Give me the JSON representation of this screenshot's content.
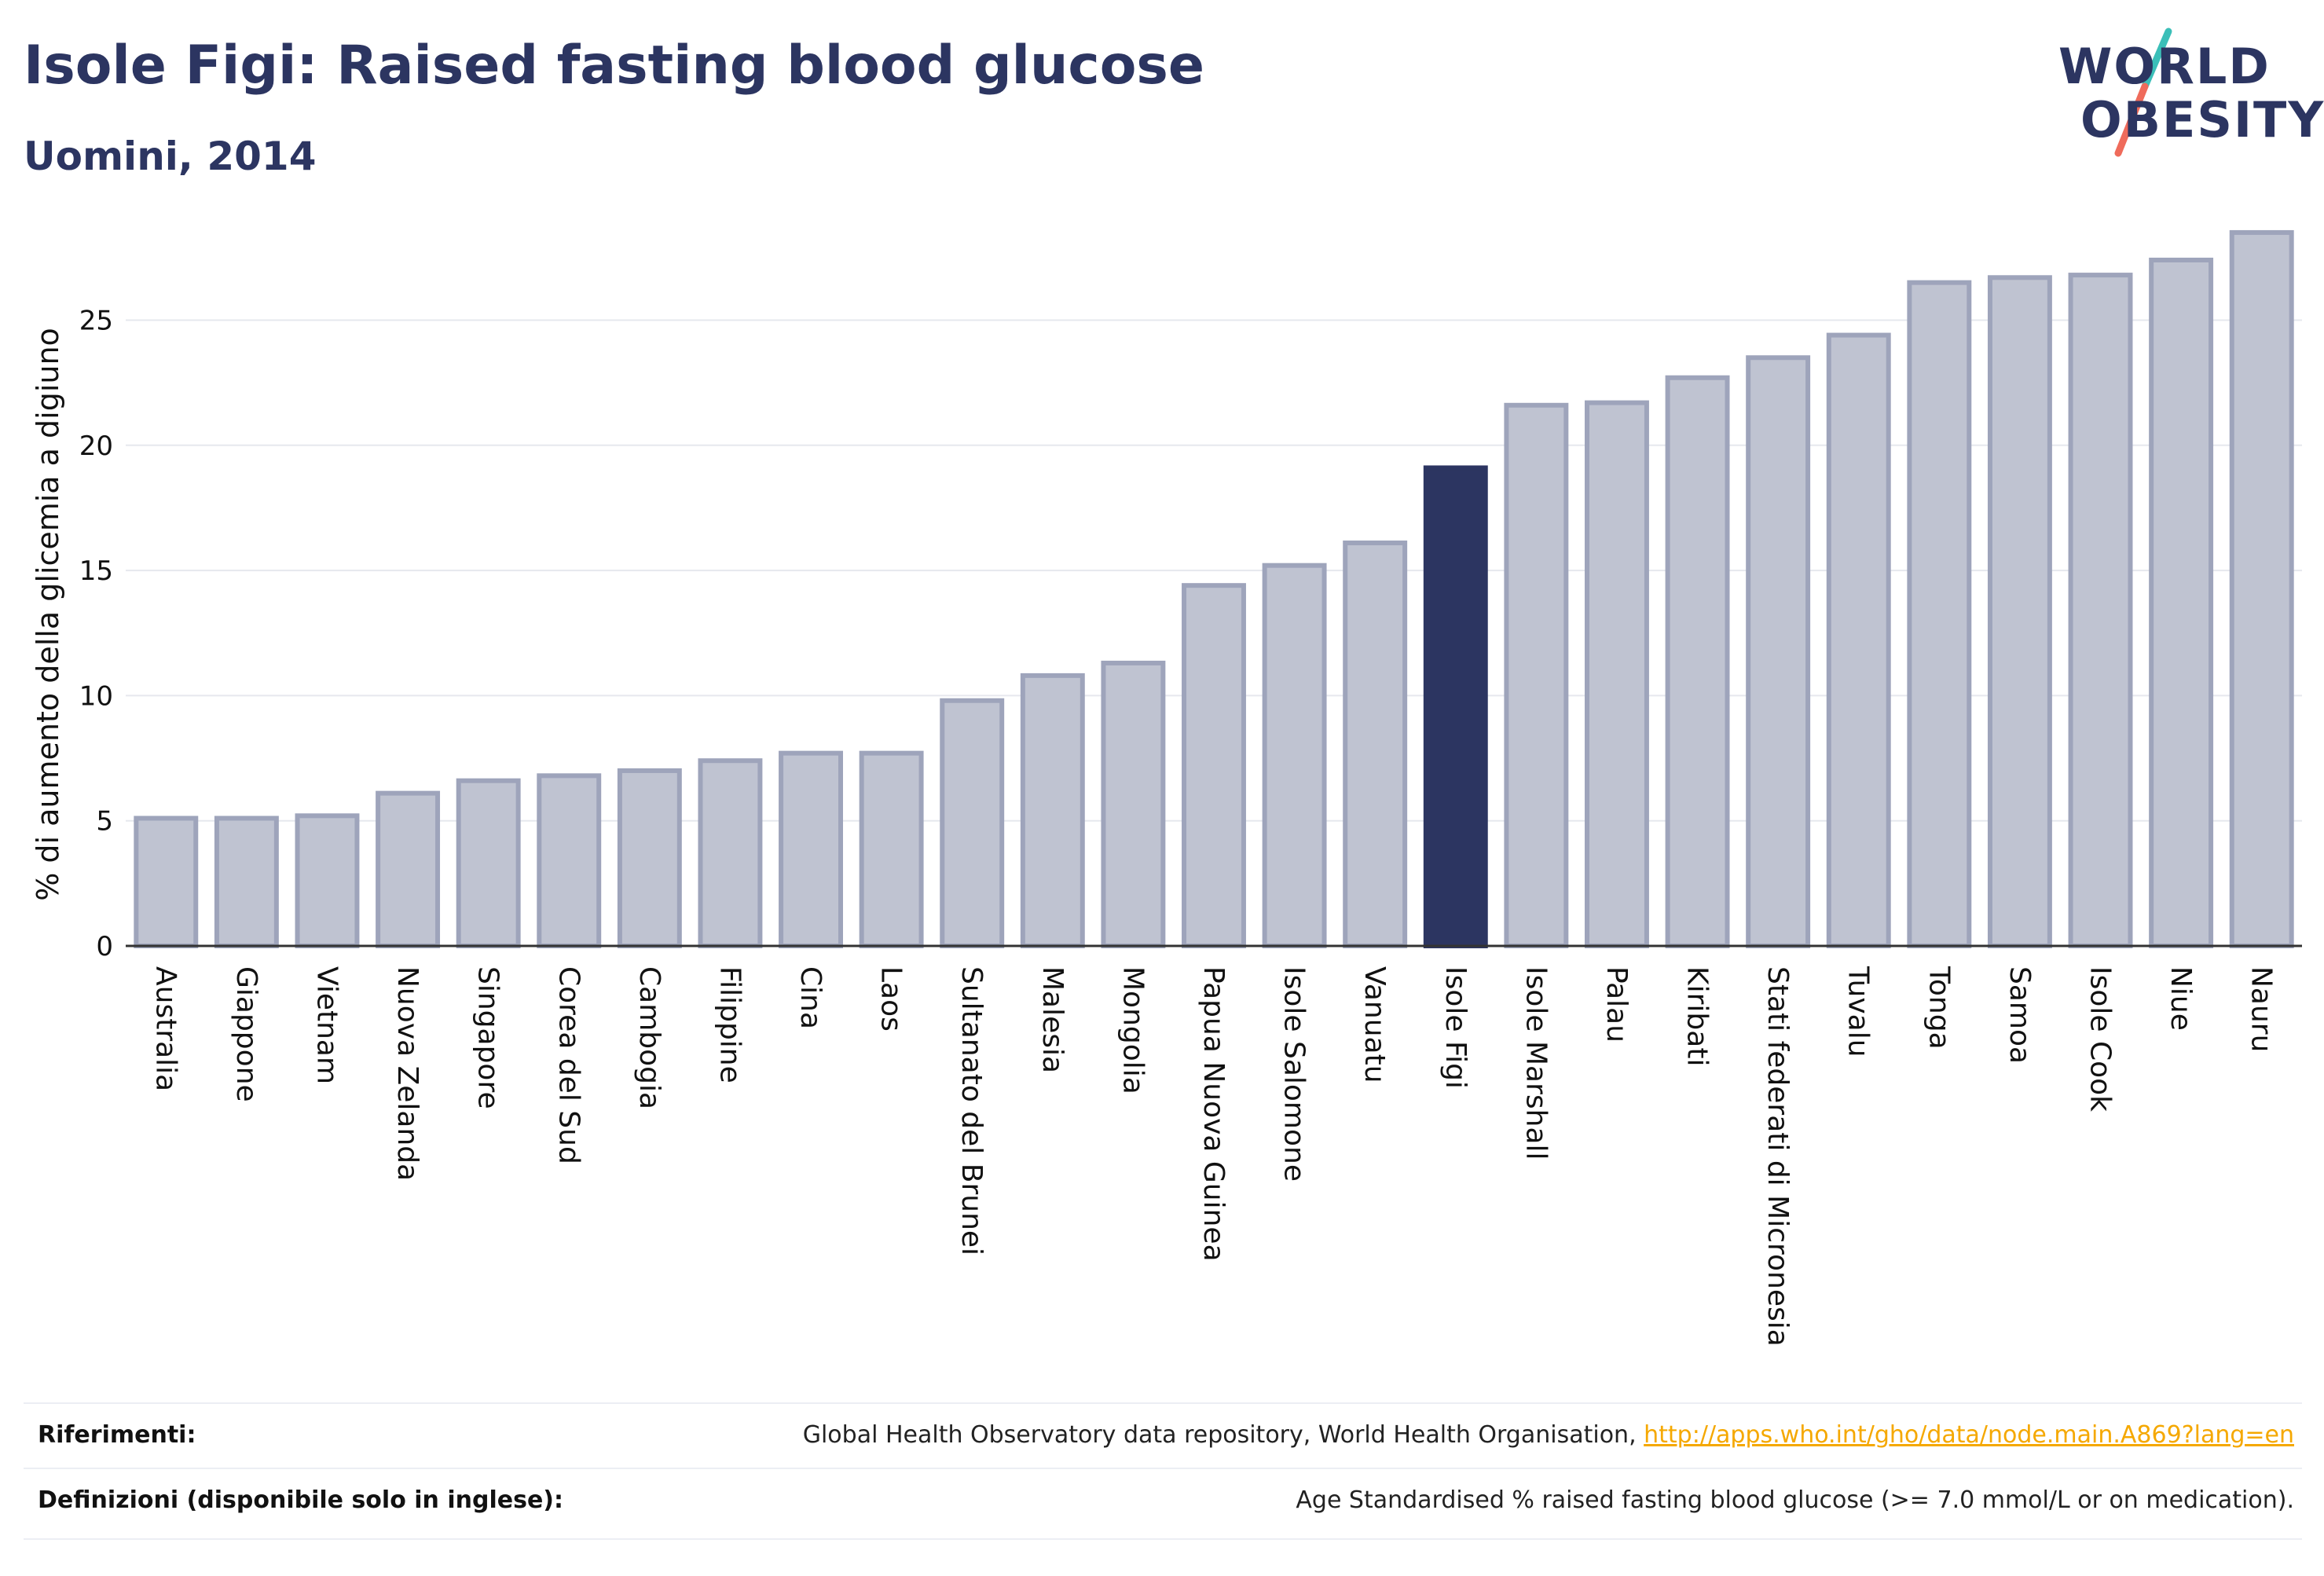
{
  "header": {
    "title": "Isole Figi: Raised fasting blood glucose",
    "subtitle": "Uomini, 2014"
  },
  "logo": {
    "line1": "WORLD",
    "line2": "OBESITY",
    "colors": {
      "text": "#2c3561",
      "slash_top": "#3bbfb8",
      "slash_bottom": "#ef6b5b"
    }
  },
  "chart_data": {
    "type": "bar",
    "ylabel": "% di aumento della glicemia a digiuno",
    "ylim": [
      0,
      29
    ],
    "yticks": [
      0,
      5,
      10,
      15,
      20,
      25
    ],
    "grid": true,
    "highlight": "Isole Figi",
    "colors": {
      "bar": "#bfc3d1",
      "bar_border": "#9ea4bb",
      "highlight": "#2c3561"
    },
    "categories": [
      "Australia",
      "Giappone",
      "Vietnam",
      "Nuova Zelanda",
      "Singapore",
      "Corea del Sud",
      "Cambogia",
      "Filippine",
      "Cina",
      "Laos",
      "Sultanato del Brunei",
      "Malesia",
      "Mongolia",
      "Papua Nuova Guinea",
      "Isole Salomone",
      "Vanuatu",
      "Isole Figi",
      "Isole Marshall",
      "Palau",
      "Kiribati",
      "Stati federati di Micronesia",
      "Tuvalu",
      "Tonga",
      "Samoa",
      "Isole Cook",
      "Niue",
      "Nauru"
    ],
    "values": [
      5.1,
      5.1,
      5.2,
      6.1,
      6.6,
      6.8,
      7.0,
      7.4,
      7.7,
      7.7,
      9.8,
      10.8,
      11.3,
      14.4,
      15.2,
      16.1,
      19.1,
      21.6,
      21.7,
      22.7,
      23.5,
      24.4,
      26.5,
      26.7,
      26.8,
      27.4,
      28.5
    ]
  },
  "references": {
    "rif_label": "Riferimenti:",
    "rif_text": "Global Health Observatory data repository, World Health Organisation, ",
    "rif_link": "http://apps.who.int/gho/data/node.main.A869?lang=en",
    "def_label": "Definizioni (disponibile solo in inglese):",
    "def_text": "Age Standardised % raised fasting blood glucose (>= 7.0 mmol/L or on medication)."
  }
}
